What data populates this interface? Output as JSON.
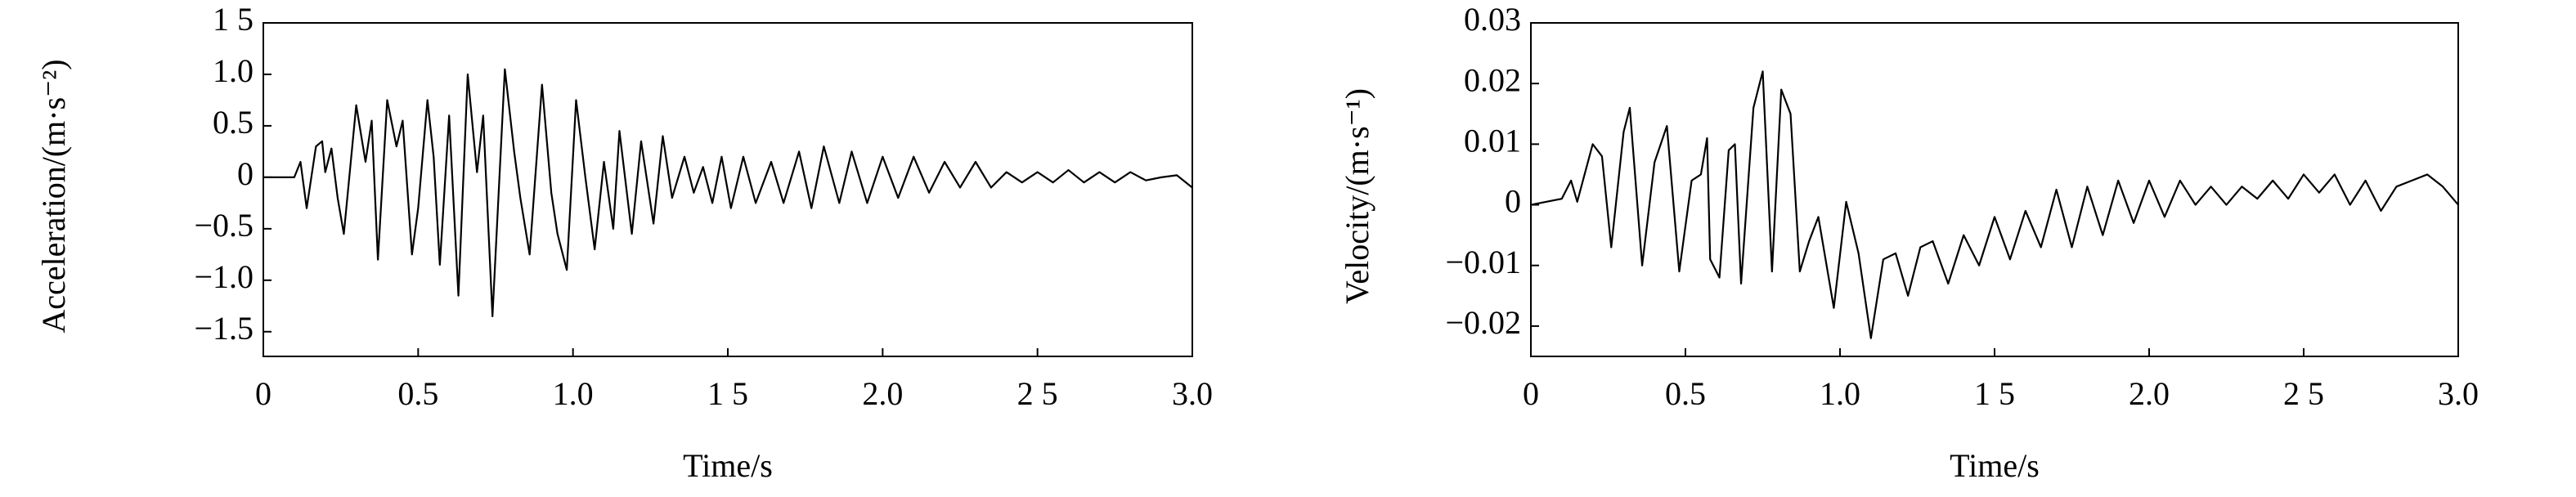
{
  "chart_data": [
    {
      "type": "line",
      "ylabel": "Acceleration/(m·s⁻²)",
      "xlabel": "Time/s",
      "color": "#000000",
      "xlim": [
        0,
        3
      ],
      "xticks": [
        0,
        0.5,
        {
          "value": 1,
          "label": "1.0"
        },
        {
          "value": 1.5,
          "label": "1 5"
        },
        {
          "value": 2,
          "label": "2.0"
        },
        {
          "value": 2.5,
          "label": "2 5"
        },
        {
          "value": 3,
          "label": "3.0"
        }
      ],
      "ylim": [
        -1.74,
        1.5
      ],
      "yticks": [
        {
          "value": 1.5,
          "label": "1 5"
        },
        {
          "value": 1,
          "label": "1.0"
        },
        0.5,
        0,
        {
          "value": -0.5,
          "label": "−0.5"
        },
        {
          "value": -1,
          "label": "−1.0"
        },
        {
          "value": -1.5,
          "label": "−1.5"
        }
      ],
      "x": [
        0,
        0.1,
        0.12,
        0.14,
        0.17,
        0.19,
        0.2,
        0.22,
        0.24,
        0.26,
        0.3,
        0.33,
        0.35,
        0.37,
        0.4,
        0.43,
        0.45,
        0.48,
        0.5,
        0.53,
        0.55,
        0.57,
        0.6,
        0.63,
        0.66,
        0.69,
        0.71,
        0.74,
        0.78,
        0.81,
        0.83,
        0.86,
        0.9,
        0.93,
        0.95,
        0.98,
        1.01,
        1.04,
        1.07,
        1.1,
        1.13,
        1.15,
        1.19,
        1.22,
        1.26,
        1.29,
        1.32,
        1.36,
        1.39,
        1.42,
        1.45,
        1.48,
        1.51,
        1.55,
        1.59,
        1.64,
        1.68,
        1.73,
        1.77,
        1.81,
        1.86,
        1.9,
        1.95,
        2.0,
        2.05,
        2.1,
        2.15,
        2.2,
        2.25,
        2.3,
        2.35,
        2.4,
        2.45,
        2.5,
        2.55,
        2.6,
        2.65,
        2.7,
        2.75,
        2.8,
        2.85,
        2.9,
        2.95,
        3.0
      ],
      "values": [
        0,
        0,
        0.15,
        -0.3,
        0.3,
        0.35,
        0.05,
        0.28,
        -0.2,
        -0.55,
        0.7,
        0.15,
        0.55,
        -0.8,
        0.75,
        0.3,
        0.55,
        -0.75,
        -0.3,
        0.75,
        0.2,
        -0.85,
        0.6,
        -1.15,
        1.0,
        0.05,
        0.6,
        -1.35,
        1.05,
        0.25,
        -0.2,
        -0.75,
        0.9,
        -0.15,
        -0.55,
        -0.9,
        0.75,
        0.0,
        -0.7,
        0.15,
        -0.5,
        0.45,
        -0.55,
        0.35,
        -0.45,
        0.4,
        -0.2,
        0.2,
        -0.15,
        0.1,
        -0.25,
        0.2,
        -0.3,
        0.2,
        -0.25,
        0.15,
        -0.25,
        0.25,
        -0.3,
        0.3,
        -0.25,
        0.25,
        -0.25,
        0.2,
        -0.2,
        0.2,
        -0.15,
        0.15,
        -0.1,
        0.15,
        -0.1,
        0.05,
        -0.05,
        0.05,
        -0.05,
        0.07,
        -0.05,
        0.05,
        -0.05,
        0.05,
        -0.03,
        0.0,
        0.02,
        -0.1
      ]
    },
    {
      "type": "line",
      "ylabel": "Velocity/(m·s⁻¹)",
      "xlabel": "Time/s",
      "color": "#000000",
      "xlim": [
        0,
        3
      ],
      "xticks": [
        0,
        0.5,
        {
          "value": 1,
          "label": "1.0"
        },
        {
          "value": 1.5,
          "label": "1 5"
        },
        {
          "value": 2,
          "label": "2.0"
        },
        {
          "value": 2.5,
          "label": "2 5"
        },
        {
          "value": 3,
          "label": "3.0"
        }
      ],
      "ylim": [
        -0.025,
        0.03
      ],
      "yticks": [
        0.03,
        0.02,
        0.01,
        0,
        {
          "value": -0.01,
          "label": "−0.01"
        },
        {
          "value": -0.02,
          "label": "−0.02"
        }
      ],
      "x": [
        0,
        0.1,
        0.13,
        0.15,
        0.2,
        0.23,
        0.26,
        0.3,
        0.32,
        0.36,
        0.4,
        0.44,
        0.48,
        0.52,
        0.55,
        0.57,
        0.58,
        0.61,
        0.64,
        0.66,
        0.68,
        0.72,
        0.75,
        0.78,
        0.81,
        0.84,
        0.87,
        0.9,
        0.93,
        0.98,
        1.02,
        1.06,
        1.1,
        1.14,
        1.18,
        1.22,
        1.26,
        1.3,
        1.35,
        1.4,
        1.45,
        1.5,
        1.55,
        1.6,
        1.65,
        1.7,
        1.75,
        1.8,
        1.85,
        1.9,
        1.95,
        2.0,
        2.05,
        2.1,
        2.15,
        2.2,
        2.25,
        2.3,
        2.35,
        2.4,
        2.45,
        2.5,
        2.55,
        2.6,
        2.65,
        2.7,
        2.75,
        2.8,
        2.85,
        2.9,
        2.95,
        3.0
      ],
      "values": [
        0,
        0.001,
        0.004,
        0.0005,
        0.01,
        0.008,
        -0.007,
        0.012,
        0.016,
        -0.01,
        0.007,
        0.013,
        -0.011,
        0.004,
        0.005,
        0.011,
        -0.009,
        -0.012,
        0.009,
        0.01,
        -0.013,
        0.016,
        0.022,
        -0.011,
        0.019,
        0.015,
        -0.011,
        -0.006,
        -0.002,
        -0.017,
        0.0005,
        -0.008,
        -0.022,
        -0.009,
        -0.008,
        -0.015,
        -0.007,
        -0.006,
        -0.013,
        -0.005,
        -0.01,
        -0.002,
        -0.009,
        -0.001,
        -0.007,
        0.0025,
        -0.007,
        0.003,
        -0.005,
        0.004,
        -0.003,
        0.004,
        -0.002,
        0.004,
        0.0,
        0.003,
        0.0,
        0.003,
        0.001,
        0.004,
        0.001,
        0.005,
        0.002,
        0.005,
        0.0,
        0.004,
        -0.001,
        0.003,
        0.004,
        0.005,
        0.003,
        0.0
      ]
    }
  ]
}
